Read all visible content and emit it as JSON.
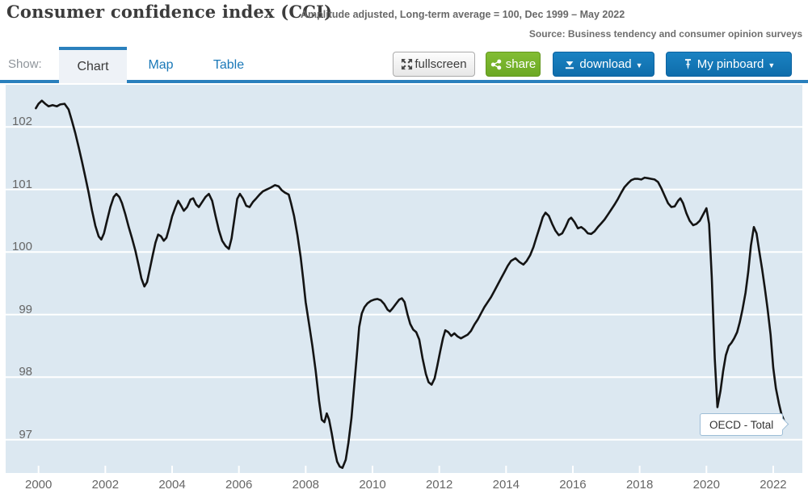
{
  "header": {
    "title": "Consumer confidence index (CCI)",
    "subtitle": "Amplitude adjusted, Long-term average = 100, Dec 1999 – May 2022",
    "source": "Source: Business tendency and consumer opinion surveys"
  },
  "tabs": {
    "show_label": "Show:",
    "items": [
      {
        "label": "Chart",
        "active": true
      },
      {
        "label": "Map",
        "active": false
      },
      {
        "label": "Table",
        "active": false
      }
    ]
  },
  "toolbar": {
    "fullscreen_label": "fullscreen",
    "share_label": "share",
    "download_label": "download",
    "pinboard_label": "My pinboard",
    "caret": "▼"
  },
  "tooltip": {
    "label": "OECD - Total"
  },
  "colors": {
    "accent_blue": "#1377b7",
    "accent_green": "#74b02a",
    "tab_blue": "#2a80bd",
    "plot_bg": "#dce8f1",
    "gridline": "#ffffff",
    "line": "#141414",
    "axis_text": "#666666"
  },
  "chart_data": {
    "type": "line",
    "title": "Consumer confidence index (CCI)",
    "subtitle": "Amplitude adjusted, Long-term average = 100, Dec 1999 - May 2022",
    "xlabel": "",
    "ylabel": "",
    "x_ticks": [
      2000,
      2002,
      2004,
      2006,
      2008,
      2010,
      2012,
      2014,
      2016,
      2018,
      2020,
      2022
    ],
    "y_ticks": [
      97,
      98,
      99,
      100,
      101,
      102
    ],
    "xlim": [
      1999.75,
      2022.6
    ],
    "ylim": [
      96.47,
      102.68
    ],
    "grid": "horizontal-white-bands",
    "legend_position": "tooltip-on-line-end",
    "series": [
      {
        "name": "OECD - Total",
        "points": [
          [
            1999.92,
            102.3
          ],
          [
            2000.0,
            102.37
          ],
          [
            2000.1,
            102.42
          ],
          [
            2000.2,
            102.37
          ],
          [
            2000.3,
            102.33
          ],
          [
            2000.42,
            102.35
          ],
          [
            2000.55,
            102.33
          ],
          [
            2000.65,
            102.36
          ],
          [
            2000.78,
            102.37
          ],
          [
            2000.9,
            102.28
          ],
          [
            2001.0,
            102.1
          ],
          [
            2001.1,
            101.9
          ],
          [
            2001.2,
            101.68
          ],
          [
            2001.3,
            101.45
          ],
          [
            2001.4,
            101.2
          ],
          [
            2001.5,
            100.95
          ],
          [
            2001.6,
            100.67
          ],
          [
            2001.7,
            100.42
          ],
          [
            2001.8,
            100.25
          ],
          [
            2001.88,
            100.2
          ],
          [
            2001.96,
            100.3
          ],
          [
            2002.05,
            100.5
          ],
          [
            2002.15,
            100.72
          ],
          [
            2002.25,
            100.88
          ],
          [
            2002.33,
            100.93
          ],
          [
            2002.42,
            100.88
          ],
          [
            2002.5,
            100.78
          ],
          [
            2002.6,
            100.6
          ],
          [
            2002.7,
            100.4
          ],
          [
            2002.8,
            100.22
          ],
          [
            2002.9,
            100.02
          ],
          [
            2003.0,
            99.78
          ],
          [
            2003.08,
            99.58
          ],
          [
            2003.17,
            99.45
          ],
          [
            2003.25,
            99.52
          ],
          [
            2003.33,
            99.72
          ],
          [
            2003.42,
            99.95
          ],
          [
            2003.5,
            100.15
          ],
          [
            2003.58,
            100.28
          ],
          [
            2003.67,
            100.25
          ],
          [
            2003.75,
            100.18
          ],
          [
            2003.83,
            100.23
          ],
          [
            2003.92,
            100.4
          ],
          [
            2004.0,
            100.57
          ],
          [
            2004.1,
            100.72
          ],
          [
            2004.18,
            100.82
          ],
          [
            2004.27,
            100.74
          ],
          [
            2004.35,
            100.66
          ],
          [
            2004.45,
            100.72
          ],
          [
            2004.55,
            100.84
          ],
          [
            2004.63,
            100.86
          ],
          [
            2004.72,
            100.76
          ],
          [
            2004.8,
            100.72
          ],
          [
            2004.9,
            100.8
          ],
          [
            2005.0,
            100.88
          ],
          [
            2005.1,
            100.93
          ],
          [
            2005.2,
            100.82
          ],
          [
            2005.3,
            100.58
          ],
          [
            2005.4,
            100.35
          ],
          [
            2005.5,
            100.18
          ],
          [
            2005.6,
            100.1
          ],
          [
            2005.7,
            100.05
          ],
          [
            2005.78,
            100.22
          ],
          [
            2005.87,
            100.55
          ],
          [
            2005.95,
            100.85
          ],
          [
            2006.03,
            100.93
          ],
          [
            2006.12,
            100.86
          ],
          [
            2006.22,
            100.74
          ],
          [
            2006.32,
            100.72
          ],
          [
            2006.42,
            100.8
          ],
          [
            2006.52,
            100.86
          ],
          [
            2006.62,
            100.92
          ],
          [
            2006.72,
            100.97
          ],
          [
            2006.83,
            101.0
          ],
          [
            2006.95,
            101.03
          ],
          [
            2007.08,
            101.07
          ],
          [
            2007.19,
            101.05
          ],
          [
            2007.28,
            100.99
          ],
          [
            2007.38,
            100.95
          ],
          [
            2007.49,
            100.92
          ],
          [
            2007.56,
            100.78
          ],
          [
            2007.65,
            100.58
          ],
          [
            2007.75,
            100.28
          ],
          [
            2007.85,
            99.92
          ],
          [
            2007.93,
            99.55
          ],
          [
            2008.0,
            99.2
          ],
          [
            2008.1,
            98.85
          ],
          [
            2008.2,
            98.5
          ],
          [
            2008.3,
            98.1
          ],
          [
            2008.4,
            97.62
          ],
          [
            2008.48,
            97.32
          ],
          [
            2008.56,
            97.28
          ],
          [
            2008.63,
            97.42
          ],
          [
            2008.7,
            97.32
          ],
          [
            2008.78,
            97.1
          ],
          [
            2008.86,
            96.85
          ],
          [
            2008.94,
            96.65
          ],
          [
            2009.02,
            96.57
          ],
          [
            2009.1,
            96.55
          ],
          [
            2009.2,
            96.68
          ],
          [
            2009.28,
            96.95
          ],
          [
            2009.37,
            97.35
          ],
          [
            2009.45,
            97.85
          ],
          [
            2009.53,
            98.35
          ],
          [
            2009.6,
            98.8
          ],
          [
            2009.68,
            99.02
          ],
          [
            2009.76,
            99.12
          ],
          [
            2009.85,
            99.18
          ],
          [
            2009.95,
            99.22
          ],
          [
            2010.05,
            99.24
          ],
          [
            2010.15,
            99.25
          ],
          [
            2010.25,
            99.23
          ],
          [
            2010.35,
            99.17
          ],
          [
            2010.45,
            99.08
          ],
          [
            2010.52,
            99.05
          ],
          [
            2010.6,
            99.1
          ],
          [
            2010.7,
            99.17
          ],
          [
            2010.8,
            99.24
          ],
          [
            2010.88,
            99.26
          ],
          [
            2010.96,
            99.2
          ],
          [
            2011.05,
            99.0
          ],
          [
            2011.13,
            98.85
          ],
          [
            2011.22,
            98.76
          ],
          [
            2011.31,
            98.72
          ],
          [
            2011.4,
            98.6
          ],
          [
            2011.5,
            98.3
          ],
          [
            2011.6,
            98.05
          ],
          [
            2011.68,
            97.92
          ],
          [
            2011.77,
            97.88
          ],
          [
            2011.86,
            97.98
          ],
          [
            2011.94,
            98.18
          ],
          [
            2012.03,
            98.42
          ],
          [
            2012.11,
            98.62
          ],
          [
            2012.18,
            98.75
          ],
          [
            2012.27,
            98.72
          ],
          [
            2012.36,
            98.66
          ],
          [
            2012.45,
            98.7
          ],
          [
            2012.55,
            98.65
          ],
          [
            2012.65,
            98.62
          ],
          [
            2012.75,
            98.65
          ],
          [
            2012.85,
            98.68
          ],
          [
            2012.95,
            98.74
          ],
          [
            2013.05,
            98.84
          ],
          [
            2013.15,
            98.92
          ],
          [
            2013.25,
            99.02
          ],
          [
            2013.35,
            99.12
          ],
          [
            2013.45,
            99.2
          ],
          [
            2013.55,
            99.28
          ],
          [
            2013.65,
            99.38
          ],
          [
            2013.75,
            99.48
          ],
          [
            2013.85,
            99.58
          ],
          [
            2013.95,
            99.68
          ],
          [
            2014.05,
            99.78
          ],
          [
            2014.15,
            99.86
          ],
          [
            2014.28,
            99.9
          ],
          [
            2014.4,
            99.84
          ],
          [
            2014.52,
            99.8
          ],
          [
            2014.62,
            99.86
          ],
          [
            2014.72,
            99.95
          ],
          [
            2014.82,
            100.08
          ],
          [
            2014.92,
            100.25
          ],
          [
            2015.02,
            100.42
          ],
          [
            2015.1,
            100.56
          ],
          [
            2015.18,
            100.63
          ],
          [
            2015.28,
            100.58
          ],
          [
            2015.38,
            100.45
          ],
          [
            2015.48,
            100.34
          ],
          [
            2015.58,
            100.27
          ],
          [
            2015.68,
            100.3
          ],
          [
            2015.78,
            100.4
          ],
          [
            2015.88,
            100.52
          ],
          [
            2015.95,
            100.55
          ],
          [
            2016.05,
            100.48
          ],
          [
            2016.15,
            100.38
          ],
          [
            2016.25,
            100.4
          ],
          [
            2016.35,
            100.36
          ],
          [
            2016.45,
            100.3
          ],
          [
            2016.55,
            100.29
          ],
          [
            2016.65,
            100.33
          ],
          [
            2016.75,
            100.4
          ],
          [
            2016.85,
            100.46
          ],
          [
            2016.95,
            100.52
          ],
          [
            2017.05,
            100.6
          ],
          [
            2017.15,
            100.68
          ],
          [
            2017.25,
            100.76
          ],
          [
            2017.35,
            100.85
          ],
          [
            2017.45,
            100.95
          ],
          [
            2017.55,
            101.04
          ],
          [
            2017.65,
            101.1
          ],
          [
            2017.75,
            101.15
          ],
          [
            2017.85,
            101.17
          ],
          [
            2017.95,
            101.17
          ],
          [
            2018.05,
            101.16
          ],
          [
            2018.15,
            101.19
          ],
          [
            2018.25,
            101.18
          ],
          [
            2018.35,
            101.17
          ],
          [
            2018.45,
            101.16
          ],
          [
            2018.55,
            101.12
          ],
          [
            2018.65,
            101.02
          ],
          [
            2018.75,
            100.9
          ],
          [
            2018.85,
            100.78
          ],
          [
            2018.95,
            100.72
          ],
          [
            2019.05,
            100.73
          ],
          [
            2019.15,
            100.82
          ],
          [
            2019.22,
            100.86
          ],
          [
            2019.3,
            100.78
          ],
          [
            2019.4,
            100.62
          ],
          [
            2019.5,
            100.5
          ],
          [
            2019.6,
            100.43
          ],
          [
            2019.7,
            100.45
          ],
          [
            2019.8,
            100.5
          ],
          [
            2019.9,
            100.6
          ],
          [
            2020.0,
            100.7
          ],
          [
            2020.08,
            100.45
          ],
          [
            2020.16,
            99.6
          ],
          [
            2020.25,
            98.3
          ],
          [
            2020.33,
            97.52
          ],
          [
            2020.42,
            97.78
          ],
          [
            2020.5,
            98.1
          ],
          [
            2020.58,
            98.35
          ],
          [
            2020.67,
            98.5
          ],
          [
            2020.75,
            98.55
          ],
          [
            2020.83,
            98.62
          ],
          [
            2020.92,
            98.72
          ],
          [
            2021.0,
            98.88
          ],
          [
            2021.08,
            99.08
          ],
          [
            2021.17,
            99.35
          ],
          [
            2021.25,
            99.68
          ],
          [
            2021.33,
            100.1
          ],
          [
            2021.42,
            100.4
          ],
          [
            2021.5,
            100.3
          ],
          [
            2021.58,
            100.02
          ],
          [
            2021.67,
            99.72
          ],
          [
            2021.75,
            99.42
          ],
          [
            2021.83,
            99.1
          ],
          [
            2021.92,
            98.68
          ],
          [
            2022.0,
            98.15
          ],
          [
            2022.08,
            97.82
          ],
          [
            2022.17,
            97.58
          ],
          [
            2022.25,
            97.4
          ],
          [
            2022.33,
            97.3
          ]
        ]
      }
    ]
  }
}
